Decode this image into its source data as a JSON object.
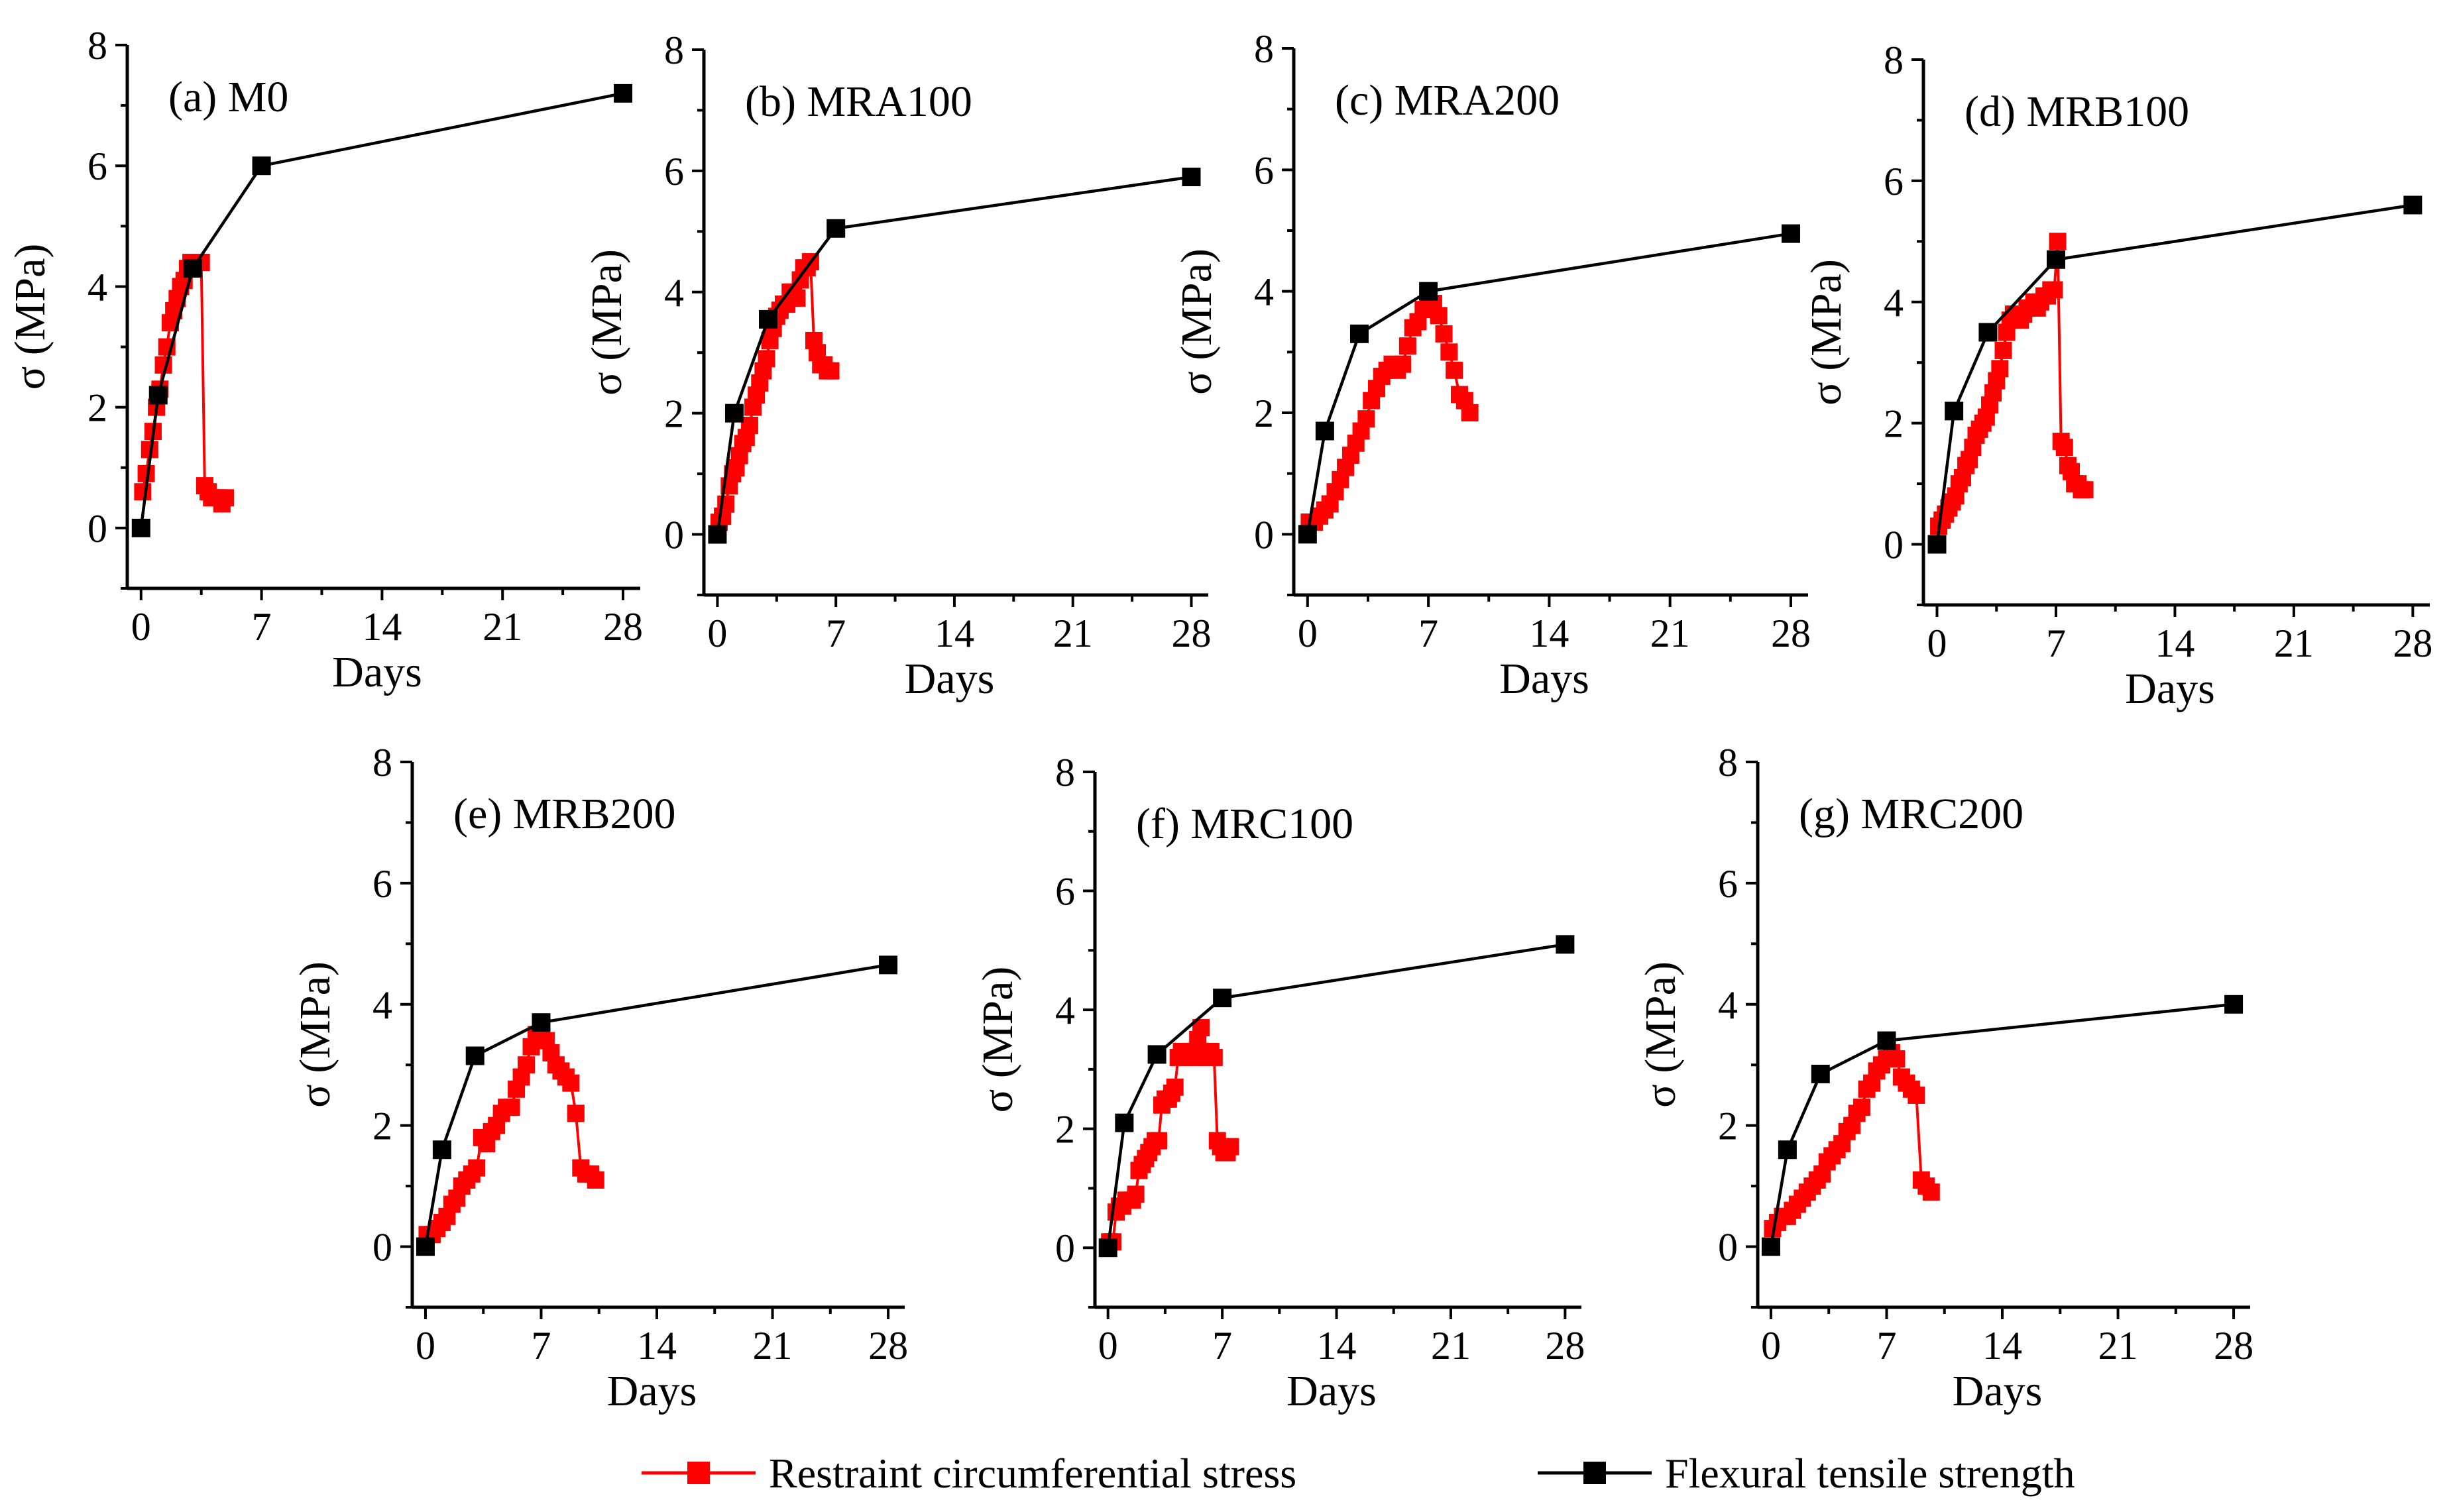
{
  "legend": {
    "restraint_label": "Restraint circumferential stress",
    "flexural_label": "Flexural tensile strength"
  },
  "colors": {
    "restraint": "#ff0000",
    "flexural": "#000000"
  },
  "chart_data": [
    {
      "type": "line",
      "title": "(a) M0",
      "xlabel": "Days",
      "ylabel": "σ (MPa)",
      "xticks": [
        0,
        7,
        14,
        21,
        28
      ],
      "yticks": [
        0,
        2,
        4,
        6,
        8
      ],
      "xlim": [
        -0.8,
        29
      ],
      "ylim": [
        -1,
        8
      ],
      "series": [
        {
          "name": "Restraint circumferential stress",
          "x": [
            0.1,
            0.3,
            0.5,
            0.7,
            0.9,
            1.1,
            1.3,
            1.5,
            1.7,
            1.9,
            2.1,
            2.3,
            2.5,
            2.7,
            2.9,
            3.1,
            3.3,
            3.5,
            3.7,
            3.9,
            4.1,
            4.3,
            4.5,
            4.7,
            4.9
          ],
          "y": [
            0.6,
            0.9,
            1.3,
            1.6,
            2.0,
            2.3,
            2.7,
            3.0,
            3.4,
            3.6,
            3.8,
            4.0,
            4.1,
            4.3,
            4.4,
            4.4,
            4.4,
            4.4,
            0.7,
            0.6,
            0.5,
            0.5,
            0.5,
            0.4,
            0.5
          ]
        },
        {
          "name": "Flexural tensile strength",
          "x": [
            0,
            1,
            3,
            7,
            28
          ],
          "y": [
            0.0,
            2.2,
            4.3,
            6.0,
            7.2
          ]
        }
      ]
    },
    {
      "type": "line",
      "title": "(b) MRA100",
      "xlabel": "Days",
      "ylabel": "σ (MPa)",
      "xticks": [
        0,
        7,
        14,
        21,
        28
      ],
      "yticks": [
        0,
        2,
        4,
        6,
        8
      ],
      "xlim": [
        -0.8,
        29
      ],
      "ylim": [
        -1,
        8
      ],
      "series": [
        {
          "name": "Restraint circumferential stress",
          "x": [
            0.1,
            0.3,
            0.5,
            0.7,
            0.9,
            1.1,
            1.3,
            1.5,
            1.7,
            1.9,
            2.1,
            2.3,
            2.5,
            2.7,
            2.9,
            3.1,
            3.3,
            3.5,
            3.7,
            3.9,
            4.1,
            4.3,
            4.5,
            4.7,
            4.9,
            5.1,
            5.3,
            5.5,
            5.7,
            5.9,
            6.1,
            6.3,
            6.5,
            6.7
          ],
          "y": [
            0.2,
            0.3,
            0.5,
            0.8,
            1.0,
            1.1,
            1.3,
            1.5,
            1.6,
            1.8,
            2.1,
            2.3,
            2.5,
            2.7,
            2.9,
            3.2,
            3.4,
            3.6,
            3.7,
            3.8,
            3.8,
            4.0,
            4.0,
            3.9,
            4.2,
            4.4,
            4.4,
            4.5,
            3.2,
            3.0,
            2.8,
            2.8,
            2.7,
            2.7
          ]
        },
        {
          "name": "Flexural tensile strength",
          "x": [
            0,
            1,
            3,
            7,
            28
          ],
          "y": [
            0.0,
            2.0,
            3.55,
            5.05,
            5.9
          ]
        }
      ]
    },
    {
      "type": "line",
      "title": "(c) MRA200",
      "xlabel": "Days",
      "ylabel": "σ (MPa)",
      "xticks": [
        0,
        7,
        14,
        21,
        28
      ],
      "yticks": [
        0,
        2,
        4,
        6,
        8
      ],
      "xlim": [
        -0.8,
        29
      ],
      "ylim": [
        -1,
        8
      ],
      "series": [
        {
          "name": "Restraint circumferential stress",
          "x": [
            0.1,
            0.4,
            0.7,
            1.0,
            1.3,
            1.6,
            1.9,
            2.2,
            2.5,
            2.8,
            3.1,
            3.4,
            3.7,
            4.0,
            4.3,
            4.6,
            4.9,
            5.2,
            5.5,
            5.8,
            6.1,
            6.4,
            6.7,
            7.0,
            7.3,
            7.6,
            7.9,
            8.2,
            8.5,
            8.8,
            9.1,
            9.4
          ],
          "y": [
            0.2,
            0.2,
            0.3,
            0.4,
            0.5,
            0.7,
            0.9,
            1.1,
            1.3,
            1.5,
            1.7,
            1.9,
            2.2,
            2.4,
            2.6,
            2.7,
            2.8,
            2.7,
            2.8,
            3.1,
            3.4,
            3.5,
            3.7,
            3.8,
            3.8,
            3.6,
            3.3,
            3.0,
            2.7,
            2.3,
            2.2,
            2.0
          ]
        },
        {
          "name": "Flexural tensile strength",
          "x": [
            0,
            1,
            3,
            7,
            28
          ],
          "y": [
            0.0,
            1.7,
            3.3,
            4.0,
            4.95
          ]
        }
      ]
    },
    {
      "type": "line",
      "title": "(d) MRB100",
      "xlabel": "Days",
      "ylabel": "σ (MPa)",
      "xticks": [
        0,
        7,
        14,
        21,
        28
      ],
      "yticks": [
        0,
        2,
        4,
        6,
        8
      ],
      "xlim": [
        -0.8,
        29
      ],
      "ylim": [
        -1,
        8
      ],
      "series": [
        {
          "name": "Restraint circumferential stress",
          "x": [
            0.1,
            0.3,
            0.5,
            0.7,
            0.9,
            1.1,
            1.3,
            1.5,
            1.7,
            1.9,
            2.1,
            2.3,
            2.5,
            2.7,
            2.9,
            3.1,
            3.3,
            3.5,
            3.7,
            3.9,
            4.1,
            4.3,
            4.5,
            4.7,
            4.9,
            5.1,
            5.3,
            5.5,
            5.7,
            5.9,
            6.1,
            6.3,
            6.5,
            6.7,
            6.9,
            7.1,
            7.3,
            7.5,
            7.7,
            7.9,
            8.1,
            8.3,
            8.5,
            8.7
          ],
          "y": [
            0.3,
            0.4,
            0.5,
            0.6,
            0.7,
            0.8,
            1.0,
            1.1,
            1.3,
            1.4,
            1.6,
            1.8,
            1.9,
            2.0,
            2.1,
            2.3,
            2.5,
            2.7,
            2.9,
            3.2,
            3.5,
            3.7,
            3.8,
            3.8,
            3.7,
            3.8,
            3.9,
            3.9,
            4.0,
            3.9,
            4.0,
            4.1,
            4.1,
            4.2,
            4.2,
            5.0,
            1.7,
            1.6,
            1.3,
            1.2,
            1.0,
            1.0,
            0.9,
            0.9
          ]
        },
        {
          "name": "Flexural tensile strength",
          "x": [
            0,
            1,
            3,
            7,
            28
          ],
          "y": [
            0.0,
            2.2,
            3.5,
            4.7,
            5.6
          ]
        }
      ]
    },
    {
      "type": "line",
      "title": "(e) MRB200",
      "xlabel": "Days",
      "ylabel": "σ (MPa)",
      "xticks": [
        0,
        7,
        14,
        21,
        28
      ],
      "yticks": [
        0,
        2,
        4,
        6,
        8
      ],
      "xlim": [
        -0.8,
        29
      ],
      "ylim": [
        -1,
        8
      ],
      "series": [
        {
          "name": "Restraint circumferential stress",
          "x": [
            0.1,
            0.4,
            0.7,
            1.0,
            1.3,
            1.6,
            1.9,
            2.2,
            2.5,
            2.8,
            3.1,
            3.4,
            3.7,
            4.0,
            4.3,
            4.6,
            4.9,
            5.2,
            5.5,
            5.8,
            6.1,
            6.4,
            6.7,
            7.0,
            7.3,
            7.6,
            7.9,
            8.2,
            8.5,
            8.8,
            9.1,
            9.4,
            9.7,
            10.0,
            10.3
          ],
          "y": [
            0.2,
            0.2,
            0.3,
            0.4,
            0.5,
            0.7,
            0.8,
            1.0,
            1.1,
            1.2,
            1.3,
            1.8,
            1.7,
            1.9,
            2.0,
            2.2,
            2.3,
            2.3,
            2.6,
            2.8,
            3.0,
            3.3,
            3.5,
            3.6,
            3.4,
            3.2,
            3.0,
            2.9,
            2.8,
            2.7,
            2.2,
            1.3,
            1.2,
            1.2,
            1.1
          ]
        },
        {
          "name": "Flexural tensile strength",
          "x": [
            0,
            1,
            3,
            7,
            28
          ],
          "y": [
            0.0,
            1.6,
            3.15,
            3.7,
            4.65
          ]
        }
      ]
    },
    {
      "type": "line",
      "title": "(f) MRC100",
      "xlabel": "Days",
      "ylabel": "σ (MPa)",
      "xticks": [
        0,
        7,
        14,
        21,
        28
      ],
      "yticks": [
        0,
        2,
        4,
        6,
        8
      ],
      "xlim": [
        -0.8,
        29
      ],
      "ylim": [
        -1,
        8
      ],
      "series": [
        {
          "name": "Restraint circumferential stress",
          "x": [
            0.1,
            0.3,
            0.5,
            0.7,
            0.9,
            1.1,
            1.3,
            1.5,
            1.7,
            1.9,
            2.1,
            2.3,
            2.5,
            2.7,
            2.9,
            3.1,
            3.3,
            3.5,
            3.7,
            3.9,
            4.1,
            4.3,
            4.5,
            4.7,
            4.9,
            5.1,
            5.3,
            5.5,
            5.7,
            5.9,
            6.1,
            6.3,
            6.5,
            6.7,
            6.9,
            7.1,
            7.3,
            7.5
          ],
          "y": [
            0.1,
            0.1,
            0.6,
            0.7,
            0.7,
            0.8,
            0.8,
            0.8,
            0.9,
            1.3,
            1.4,
            1.5,
            1.6,
            1.7,
            1.8,
            1.8,
            2.4,
            2.5,
            2.5,
            2.6,
            2.7,
            3.2,
            3.3,
            3.3,
            3.2,
            3.3,
            3.2,
            3.5,
            3.7,
            3.3,
            3.2,
            3.3,
            3.2,
            1.8,
            1.7,
            1.6,
            1.6,
            1.7
          ]
        },
        {
          "name": "Flexural tensile strength",
          "x": [
            0,
            1,
            3,
            7,
            28
          ],
          "y": [
            0.0,
            2.1,
            3.25,
            4.2,
            5.1
          ]
        }
      ]
    },
    {
      "type": "line",
      "title": "(g) MRC200",
      "xlabel": "Days",
      "ylabel": "σ (MPa)",
      "xticks": [
        0,
        7,
        14,
        21,
        28
      ],
      "yticks": [
        0,
        2,
        4,
        6,
        8
      ],
      "xlim": [
        -0.8,
        29
      ],
      "ylim": [
        -1,
        8
      ],
      "series": [
        {
          "name": "Restraint circumferential stress",
          "x": [
            0.1,
            0.4,
            0.7,
            1.0,
            1.3,
            1.6,
            1.9,
            2.2,
            2.5,
            2.8,
            3.1,
            3.4,
            3.7,
            4.0,
            4.3,
            4.6,
            4.9,
            5.2,
            5.5,
            5.8,
            6.1,
            6.4,
            6.7,
            7.0,
            7.3,
            7.6,
            7.9,
            8.2,
            8.5,
            8.8,
            9.1,
            9.4,
            9.7
          ],
          "y": [
            0.3,
            0.4,
            0.5,
            0.5,
            0.6,
            0.7,
            0.8,
            0.9,
            1.0,
            1.1,
            1.2,
            1.4,
            1.5,
            1.6,
            1.7,
            1.9,
            2.0,
            2.2,
            2.3,
            2.6,
            2.7,
            2.9,
            3.0,
            3.1,
            3.2,
            3.1,
            2.8,
            2.7,
            2.6,
            2.5,
            1.1,
            1.0,
            0.9
          ]
        },
        {
          "name": "Flexural tensile strength",
          "x": [
            0,
            1,
            3,
            7,
            28
          ],
          "y": [
            0.0,
            1.6,
            2.85,
            3.4,
            4.0
          ]
        }
      ]
    }
  ]
}
